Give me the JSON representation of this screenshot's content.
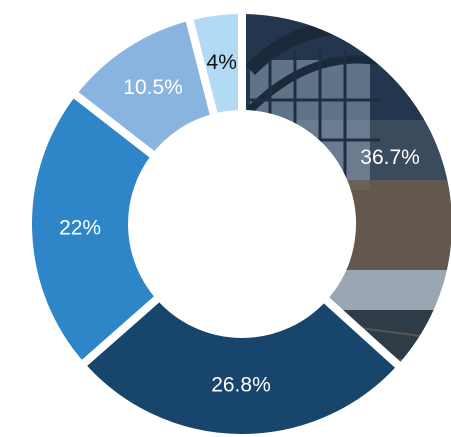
{
  "chart_data": {
    "type": "donut",
    "values": [
      36.7,
      26.8,
      22,
      10.5,
      4
    ],
    "value_labels": [
      "36.7%",
      "26.8%",
      "22%",
      "10.5%",
      "4%"
    ],
    "colors": [
      "url(#photo)",
      "#17456b",
      "#2e86c9",
      "#8ab4e0",
      "#b3daf5"
    ],
    "label_colors": [
      "#ffffff",
      "#ffffff",
      "#ffffff",
      "#ffffff",
      "#111111"
    ]
  }
}
